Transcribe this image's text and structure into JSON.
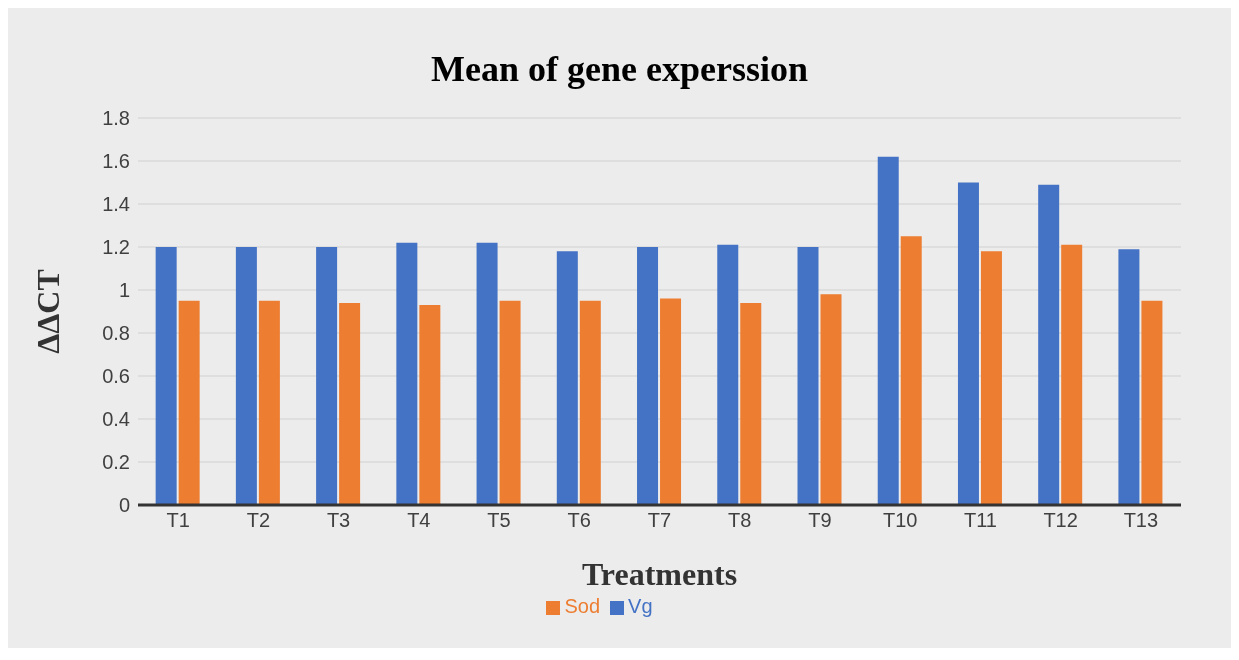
{
  "chart_data": {
    "type": "bar",
    "title": "Mean of gene experssion",
    "xlabel": "Treatments",
    "ylabel": "ΔΔCT",
    "categories": [
      "T1",
      "T2",
      "T3",
      "T4",
      "T5",
      "T6",
      "T7",
      "T8",
      "T9",
      "T10",
      "T11",
      "T12",
      "T13"
    ],
    "series": [
      {
        "name": "Vg",
        "color": "#4472c4",
        "values": [
          1.2,
          1.2,
          1.2,
          1.22,
          1.22,
          1.18,
          1.2,
          1.21,
          1.2,
          1.62,
          1.5,
          1.49,
          1.19
        ]
      },
      {
        "name": "Sod",
        "color": "#ed7d31",
        "values": [
          0.95,
          0.95,
          0.94,
          0.93,
          0.95,
          0.95,
          0.96,
          0.94,
          0.98,
          1.25,
          1.18,
          1.21,
          0.95
        ]
      }
    ],
    "ylim": [
      0,
      1.8
    ],
    "yticks": [
      0,
      0.2,
      0.4,
      0.6,
      0.8,
      1,
      1.2,
      1.4,
      1.6,
      1.8
    ],
    "grid": "y",
    "legend": "bottom"
  }
}
